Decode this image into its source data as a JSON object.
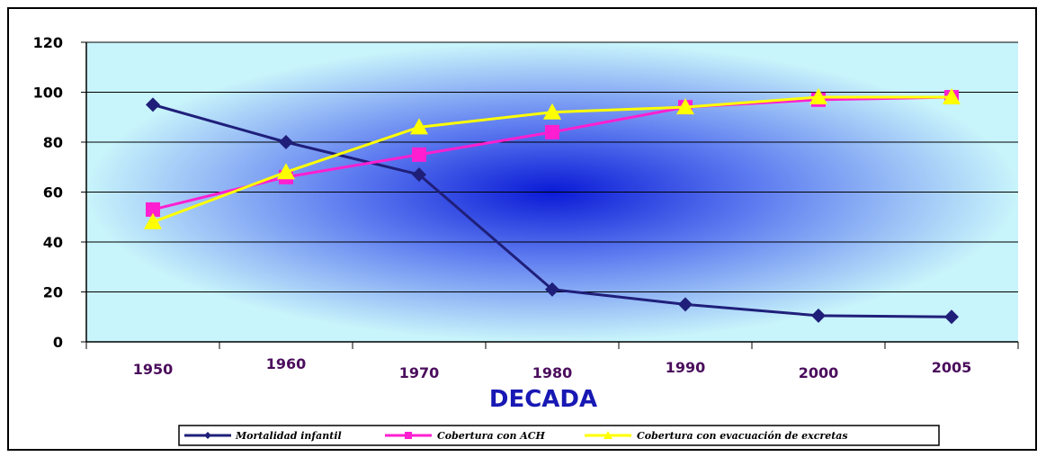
{
  "chart_data": {
    "type": "line",
    "categories": [
      "1950",
      "1960",
      "1970",
      "1980",
      "1990",
      "2000",
      "2005"
    ],
    "series": [
      {
        "name": "Mortalidad infantil",
        "values": [
          95,
          80,
          67,
          21,
          15,
          10.5,
          10
        ],
        "color": "#1f1f7a",
        "marker": "diamond"
      },
      {
        "name": "Cobertura con ACH",
        "values": [
          53,
          66,
          75,
          84,
          94,
          97,
          98
        ],
        "color": "#ff1fd0",
        "marker": "square"
      },
      {
        "name": "Cobertura con evacuación de excretas",
        "values": [
          48,
          68,
          86,
          92,
          94,
          98,
          98
        ],
        "color": "#ffff00",
        "marker": "triangle"
      }
    ],
    "xlabel": "DECADA",
    "ylabel": "",
    "ylim": [
      0,
      120
    ],
    "yticks": [
      "0",
      "20",
      "40",
      "60",
      "80",
      "100",
      "120"
    ],
    "grid": true,
    "legend": "bottom",
    "background": "radial gradient, dark blue center to light cyan"
  }
}
